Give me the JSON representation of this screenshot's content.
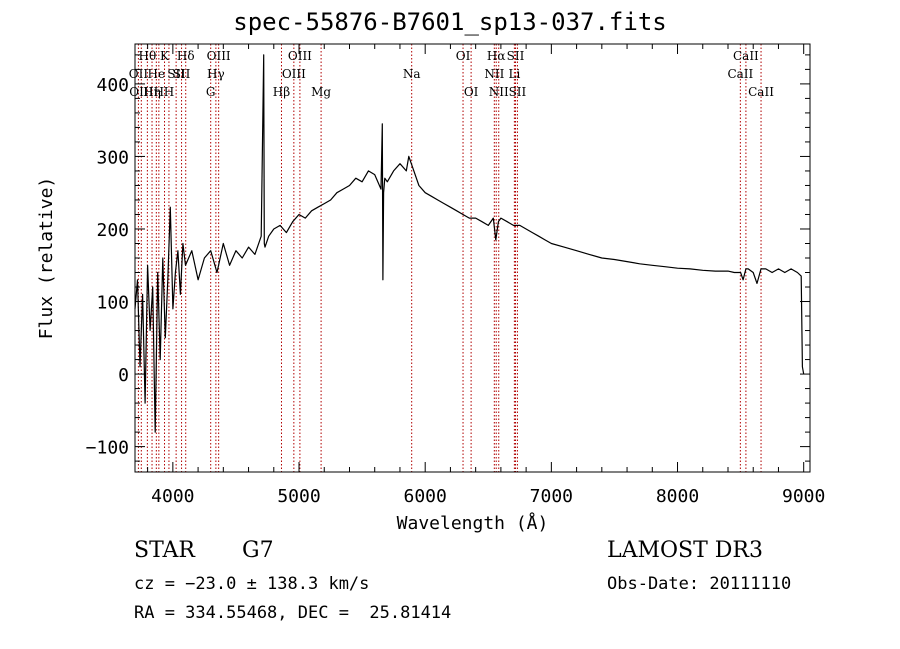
{
  "chart_data": {
    "type": "line",
    "title": "spec-55876-B7601_sp13-037.fits",
    "xlabel": "Wavelength (Å)",
    "ylabel": "Flux (relative)",
    "xlim": [
      3700,
      9050
    ],
    "ylim": [
      -135,
      455
    ],
    "xticks": [
      4000,
      5000,
      6000,
      7000,
      8000,
      9000
    ],
    "yticks": [
      -100,
      0,
      100,
      200,
      300,
      400
    ],
    "series": [
      {
        "name": "flux",
        "x": [
          3700,
          3720,
          3740,
          3760,
          3780,
          3800,
          3820,
          3840,
          3860,
          3880,
          3900,
          3920,
          3940,
          3960,
          3980,
          4000,
          4020,
          4040,
          4060,
          4080,
          4100,
          4150,
          4200,
          4250,
          4300,
          4350,
          4400,
          4450,
          4500,
          4550,
          4600,
          4650,
          4700,
          4720,
          4725,
          4730,
          4760,
          4800,
          4850,
          4900,
          4950,
          5000,
          5050,
          5100,
          5150,
          5200,
          5250,
          5300,
          5350,
          5400,
          5450,
          5500,
          5550,
          5600,
          5650,
          5660,
          5665,
          5670,
          5675,
          5680,
          5700,
          5750,
          5800,
          5850,
          5870,
          5900,
          5950,
          6000,
          6050,
          6100,
          6150,
          6200,
          6250,
          6300,
          6350,
          6400,
          6450,
          6500,
          6540,
          6560,
          6580,
          6600,
          6650,
          6700,
          6750,
          6800,
          6850,
          6900,
          6950,
          7000,
          7100,
          7200,
          7300,
          7400,
          7500,
          7600,
          7700,
          7800,
          7900,
          8000,
          8100,
          8200,
          8300,
          8400,
          8450,
          8500,
          8520,
          8542,
          8560,
          8600,
          8630,
          8662,
          8700,
          8750,
          8800,
          8850,
          8900,
          8950,
          8980,
          8990,
          9000
        ],
        "values": [
          90,
          130,
          10,
          110,
          -40,
          150,
          60,
          120,
          -80,
          140,
          20,
          160,
          50,
          130,
          230,
          90,
          140,
          170,
          110,
          180,
          150,
          170,
          130,
          160,
          170,
          140,
          180,
          150,
          170,
          160,
          175,
          165,
          190,
          440,
          180,
          175,
          190,
          200,
          205,
          195,
          210,
          220,
          215,
          225,
          230,
          235,
          240,
          250,
          255,
          260,
          270,
          265,
          280,
          275,
          255,
          345,
          130,
          250,
          260,
          270,
          265,
          280,
          290,
          280,
          300,
          285,
          260,
          250,
          245,
          240,
          235,
          230,
          225,
          220,
          215,
          215,
          210,
          205,
          215,
          185,
          210,
          215,
          210,
          205,
          205,
          200,
          195,
          190,
          185,
          180,
          175,
          170,
          165,
          160,
          158,
          155,
          152,
          150,
          148,
          146,
          145,
          143,
          142,
          142,
          140,
          140,
          130,
          145,
          145,
          140,
          125,
          145,
          145,
          140,
          145,
          140,
          145,
          140,
          135,
          10,
          0
        ]
      }
    ],
    "line_markers": [
      {
        "wavelength": 3727,
        "label": "OII",
        "row": 1
      },
      {
        "wavelength": 3750,
        "label": "OIII",
        "row": 2
      },
      {
        "wavelength": 3798,
        "label": "Hθ",
        "row": 0
      },
      {
        "wavelength": 3835,
        "label": "Hη",
        "row": 2
      },
      {
        "wavelength": 3869,
        "label": "He",
        "row": 1
      },
      {
        "wavelength": 3889,
        "label": "H",
        "row": 2
      },
      {
        "wavelength": 3934,
        "label": "K",
        "row": 0
      },
      {
        "wavelength": 3969,
        "label": "H",
        "row": 2
      },
      {
        "wavelength": 4026,
        "label": "SII",
        "row": 1
      },
      {
        "wavelength": 4069,
        "label": "SII",
        "row": 1
      },
      {
        "wavelength": 4102,
        "label": "Hδ",
        "row": 0
      },
      {
        "wavelength": 4300,
        "label": "G",
        "row": 2
      },
      {
        "wavelength": 4341,
        "label": "Hγ",
        "row": 1
      },
      {
        "wavelength": 4363,
        "label": "OIII",
        "row": 0
      },
      {
        "wavelength": 4861,
        "label": "Hβ",
        "row": 2
      },
      {
        "wavelength": 4959,
        "label": "OIII",
        "row": 1
      },
      {
        "wavelength": 5007,
        "label": "OIII",
        "row": 0
      },
      {
        "wavelength": 5175,
        "label": "Mg",
        "row": 2
      },
      {
        "wavelength": 5893,
        "label": "Na",
        "row": 1
      },
      {
        "wavelength": 6300,
        "label": "OI",
        "row": 0
      },
      {
        "wavelength": 6364,
        "label": "OI",
        "row": 2
      },
      {
        "wavelength": 6548,
        "label": "NII",
        "row": 1
      },
      {
        "wavelength": 6563,
        "label": "Hα",
        "row": 0
      },
      {
        "wavelength": 6583,
        "label": "NII",
        "row": 2
      },
      {
        "wavelength": 6707,
        "label": "Li",
        "row": 1
      },
      {
        "wavelength": 6716,
        "label": "SII",
        "row": 0
      },
      {
        "wavelength": 6731,
        "label": "SII",
        "row": 2
      },
      {
        "wavelength": 8498,
        "label": "CaII",
        "row": 1
      },
      {
        "wavelength": 8542,
        "label": "CaII",
        "row": 0
      },
      {
        "wavelength": 8662,
        "label": "CaII",
        "row": 2
      }
    ]
  },
  "info": {
    "class": "STAR",
    "subclass": "G7",
    "survey": "LAMOST DR3",
    "cz": "cz = −23.0 ± 138.3 km/s",
    "obs_date": "Obs-Date: 20111110",
    "coords": "RA = 334.55468, DEC =  25.81414"
  },
  "colors": {
    "spectrum": "#000000",
    "marker": "#b00000",
    "axis": "#000000"
  }
}
